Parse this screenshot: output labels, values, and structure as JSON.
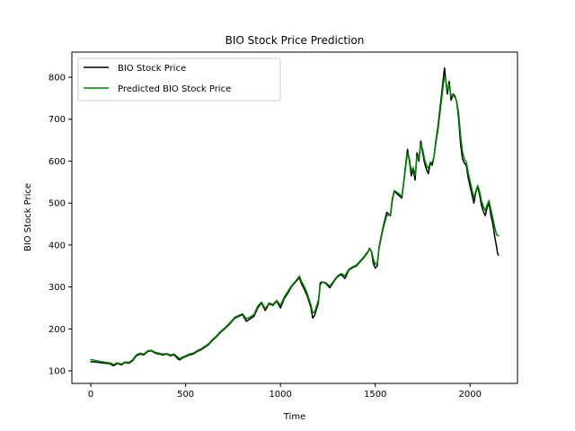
{
  "chart_data": {
    "type": "line",
    "title": "BIO Stock Price Prediction",
    "xlabel": "Time",
    "ylabel": "BIO Stock Price",
    "xlim": [
      -100,
      2250
    ],
    "ylim": [
      70,
      860
    ],
    "xticks": [
      0,
      500,
      1000,
      1500,
      2000
    ],
    "yticks": [
      100,
      200,
      300,
      400,
      500,
      600,
      700,
      800
    ],
    "grid": false,
    "legend_position": "upper-left",
    "series": [
      {
        "name": "BIO Stock Price",
        "color": "#000000",
        "points": [
          [
            0,
            122
          ],
          [
            40,
            120
          ],
          [
            80,
            118
          ],
          [
            100,
            117
          ],
          [
            120,
            112
          ],
          [
            140,
            118
          ],
          [
            160,
            114
          ],
          [
            180,
            120
          ],
          [
            200,
            118
          ],
          [
            220,
            124
          ],
          [
            240,
            136
          ],
          [
            260,
            140
          ],
          [
            280,
            138
          ],
          [
            300,
            146
          ],
          [
            320,
            148
          ],
          [
            340,
            142
          ],
          [
            360,
            140
          ],
          [
            380,
            138
          ],
          [
            400,
            140
          ],
          [
            420,
            136
          ],
          [
            440,
            138
          ],
          [
            460,
            128
          ],
          [
            470,
            126
          ],
          [
            480,
            130
          ],
          [
            500,
            134
          ],
          [
            520,
            138
          ],
          [
            540,
            140
          ],
          [
            560,
            146
          ],
          [
            580,
            150
          ],
          [
            600,
            156
          ],
          [
            620,
            162
          ],
          [
            640,
            172
          ],
          [
            660,
            180
          ],
          [
            680,
            190
          ],
          [
            700,
            198
          ],
          [
            720,
            206
          ],
          [
            740,
            216
          ],
          [
            760,
            226
          ],
          [
            780,
            230
          ],
          [
            800,
            234
          ],
          [
            820,
            218
          ],
          [
            840,
            224
          ],
          [
            860,
            230
          ],
          [
            880,
            250
          ],
          [
            900,
            262
          ],
          [
            920,
            244
          ],
          [
            940,
            260
          ],
          [
            960,
            256
          ],
          [
            980,
            266
          ],
          [
            1000,
            250
          ],
          [
            1020,
            272
          ],
          [
            1040,
            286
          ],
          [
            1060,
            302
          ],
          [
            1080,
            312
          ],
          [
            1100,
            322
          ],
          [
            1110,
            308
          ],
          [
            1120,
            300
          ],
          [
            1140,
            280
          ],
          [
            1160,
            252
          ],
          [
            1170,
            226
          ],
          [
            1180,
            232
          ],
          [
            1200,
            262
          ],
          [
            1210,
            310
          ],
          [
            1220,
            312
          ],
          [
            1240,
            308
          ],
          [
            1260,
            298
          ],
          [
            1280,
            312
          ],
          [
            1300,
            324
          ],
          [
            1320,
            330
          ],
          [
            1340,
            320
          ],
          [
            1360,
            340
          ],
          [
            1380,
            346
          ],
          [
            1400,
            350
          ],
          [
            1420,
            360
          ],
          [
            1440,
            370
          ],
          [
            1460,
            382
          ],
          [
            1470,
            392
          ],
          [
            1480,
            384
          ],
          [
            1490,
            356
          ],
          [
            1500,
            345
          ],
          [
            1510,
            350
          ],
          [
            1520,
            395
          ],
          [
            1540,
            440
          ],
          [
            1560,
            478
          ],
          [
            1580,
            470
          ],
          [
            1590,
            510
          ],
          [
            1600,
            528
          ],
          [
            1620,
            520
          ],
          [
            1640,
            512
          ],
          [
            1650,
            550
          ],
          [
            1660,
            590
          ],
          [
            1670,
            628
          ],
          [
            1680,
            600
          ],
          [
            1690,
            565
          ],
          [
            1700,
            580
          ],
          [
            1710,
            555
          ],
          [
            1720,
            620
          ],
          [
            1730,
            600
          ],
          [
            1740,
            648
          ],
          [
            1750,
            620
          ],
          [
            1760,
            595
          ],
          [
            1770,
            580
          ],
          [
            1780,
            570
          ],
          [
            1790,
            596
          ],
          [
            1800,
            590
          ],
          [
            1810,
            612
          ],
          [
            1820,
            650
          ],
          [
            1830,
            680
          ],
          [
            1840,
            720
          ],
          [
            1850,
            760
          ],
          [
            1860,
            802
          ],
          [
            1865,
            822
          ],
          [
            1870,
            800
          ],
          [
            1880,
            760
          ],
          [
            1890,
            790
          ],
          [
            1900,
            745
          ],
          [
            1910,
            760
          ],
          [
            1920,
            755
          ],
          [
            1930,
            740
          ],
          [
            1940,
            700
          ],
          [
            1950,
            640
          ],
          [
            1960,
            605
          ],
          [
            1970,
            595
          ],
          [
            1980,
            590
          ],
          [
            1990,
            560
          ],
          [
            2000,
            540
          ],
          [
            2010,
            520
          ],
          [
            2020,
            500
          ],
          [
            2030,
            525
          ],
          [
            2040,
            540
          ],
          [
            2050,
            520
          ],
          [
            2060,
            495
          ],
          [
            2070,
            480
          ],
          [
            2080,
            470
          ],
          [
            2090,
            490
          ],
          [
            2100,
            500
          ],
          [
            2110,
            470
          ],
          [
            2120,
            450
          ],
          [
            2130,
            420
          ],
          [
            2140,
            395
          ],
          [
            2145,
            380
          ],
          [
            2150,
            376
          ]
        ]
      },
      {
        "name": "Predicted BIO Stock Price",
        "color": "#008000",
        "points": [
          [
            0,
            127
          ],
          [
            40,
            123
          ],
          [
            80,
            120
          ],
          [
            100,
            119
          ],
          [
            120,
            115
          ],
          [
            140,
            119
          ],
          [
            160,
            116
          ],
          [
            180,
            121
          ],
          [
            200,
            120
          ],
          [
            220,
            126
          ],
          [
            240,
            138
          ],
          [
            260,
            142
          ],
          [
            280,
            140
          ],
          [
            300,
            148
          ],
          [
            320,
            149
          ],
          [
            340,
            144
          ],
          [
            360,
            142
          ],
          [
            380,
            140
          ],
          [
            400,
            141
          ],
          [
            420,
            138
          ],
          [
            440,
            140
          ],
          [
            460,
            132
          ],
          [
            470,
            129
          ],
          [
            480,
            132
          ],
          [
            500,
            136
          ],
          [
            520,
            140
          ],
          [
            540,
            142
          ],
          [
            560,
            148
          ],
          [
            580,
            152
          ],
          [
            600,
            158
          ],
          [
            620,
            164
          ],
          [
            640,
            174
          ],
          [
            660,
            182
          ],
          [
            680,
            192
          ],
          [
            700,
            200
          ],
          [
            720,
            208
          ],
          [
            740,
            218
          ],
          [
            760,
            228
          ],
          [
            780,
            232
          ],
          [
            800,
            236
          ],
          [
            820,
            224
          ],
          [
            840,
            228
          ],
          [
            860,
            234
          ],
          [
            880,
            254
          ],
          [
            900,
            264
          ],
          [
            920,
            248
          ],
          [
            940,
            262
          ],
          [
            960,
            258
          ],
          [
            980,
            268
          ],
          [
            1000,
            256
          ],
          [
            1020,
            276
          ],
          [
            1040,
            290
          ],
          [
            1060,
            304
          ],
          [
            1080,
            314
          ],
          [
            1100,
            326
          ],
          [
            1110,
            314
          ],
          [
            1120,
            306
          ],
          [
            1140,
            286
          ],
          [
            1160,
            258
          ],
          [
            1170,
            238
          ],
          [
            1180,
            240
          ],
          [
            1200,
            268
          ],
          [
            1210,
            304
          ],
          [
            1220,
            312
          ],
          [
            1240,
            310
          ],
          [
            1260,
            302
          ],
          [
            1280,
            314
          ],
          [
            1300,
            326
          ],
          [
            1320,
            332
          ],
          [
            1340,
            326
          ],
          [
            1360,
            342
          ],
          [
            1380,
            348
          ],
          [
            1400,
            352
          ],
          [
            1420,
            362
          ],
          [
            1440,
            372
          ],
          [
            1460,
            384
          ],
          [
            1470,
            390
          ],
          [
            1480,
            386
          ],
          [
            1490,
            366
          ],
          [
            1500,
            354
          ],
          [
            1510,
            356
          ],
          [
            1520,
            392
          ],
          [
            1540,
            436
          ],
          [
            1560,
            470
          ],
          [
            1580,
            472
          ],
          [
            1590,
            505
          ],
          [
            1600,
            530
          ],
          [
            1620,
            524
          ],
          [
            1640,
            516
          ],
          [
            1650,
            548
          ],
          [
            1660,
            585
          ],
          [
            1670,
            620
          ],
          [
            1680,
            606
          ],
          [
            1690,
            575
          ],
          [
            1700,
            585
          ],
          [
            1710,
            566
          ],
          [
            1720,
            612
          ],
          [
            1730,
            606
          ],
          [
            1740,
            640
          ],
          [
            1750,
            628
          ],
          [
            1760,
            604
          ],
          [
            1770,
            590
          ],
          [
            1780,
            582
          ],
          [
            1790,
            598
          ],
          [
            1800,
            596
          ],
          [
            1810,
            612
          ],
          [
            1820,
            645
          ],
          [
            1830,
            672
          ],
          [
            1840,
            710
          ],
          [
            1850,
            748
          ],
          [
            1860,
            786
          ],
          [
            1865,
            800
          ],
          [
            1870,
            798
          ],
          [
            1880,
            770
          ],
          [
            1890,
            782
          ],
          [
            1900,
            754
          ],
          [
            1910,
            758
          ],
          [
            1920,
            752
          ],
          [
            1930,
            742
          ],
          [
            1940,
            712
          ],
          [
            1950,
            660
          ],
          [
            1960,
            622
          ],
          [
            1970,
            605
          ],
          [
            1980,
            598
          ],
          [
            1990,
            572
          ],
          [
            2000,
            552
          ],
          [
            2010,
            532
          ],
          [
            2020,
            512
          ],
          [
            2030,
            528
          ],
          [
            2040,
            542
          ],
          [
            2050,
            528
          ],
          [
            2060,
            505
          ],
          [
            2070,
            492
          ],
          [
            2080,
            482
          ],
          [
            2090,
            496
          ],
          [
            2100,
            506
          ],
          [
            2110,
            484
          ],
          [
            2120,
            464
          ],
          [
            2130,
            442
          ],
          [
            2140,
            424
          ],
          [
            2150,
            422
          ]
        ]
      }
    ]
  }
}
